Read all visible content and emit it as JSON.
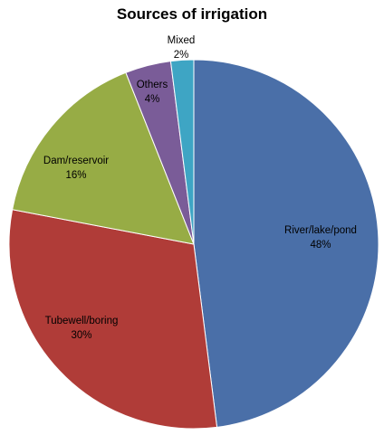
{
  "chart_data": {
    "type": "pie",
    "title": "Sources of irrigation",
    "slices": [
      {
        "label": "River/lake/pond",
        "value": 48,
        "display": "48%",
        "color": "#4a6fa8"
      },
      {
        "label": "Tubewell/boring",
        "value": 30,
        "display": "30%",
        "color": "#b03c38"
      },
      {
        "label": "Dam/reservoir",
        "value": 16,
        "display": "16%",
        "color": "#97ac45"
      },
      {
        "label": "Others",
        "value": 4,
        "display": "4%",
        "color": "#7a5c98"
      },
      {
        "label": "Mixed",
        "value": 2,
        "display": "2%",
        "color": "#3ea5c4"
      }
    ],
    "start": "12 o'clock",
    "direction": "clockwise",
    "legend": "none",
    "data_labels": "category name and percentage"
  }
}
